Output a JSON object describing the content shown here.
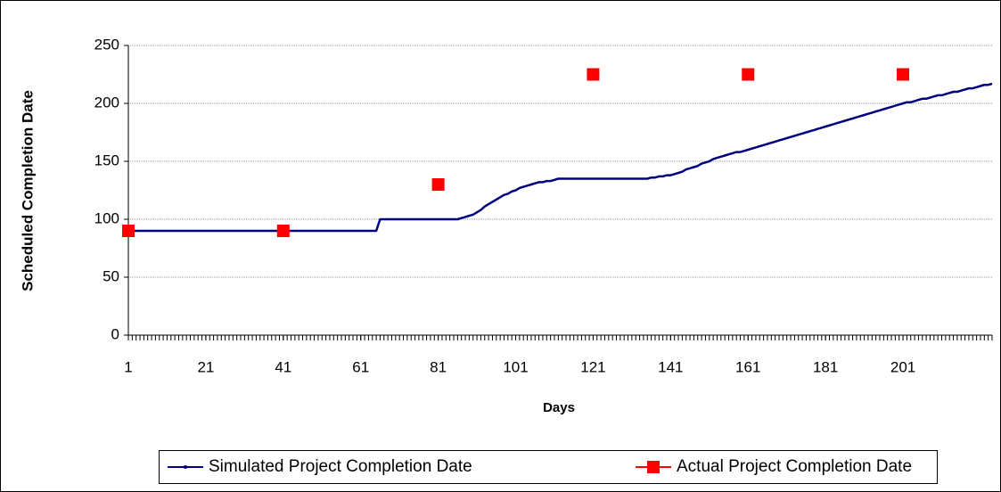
{
  "chart_data": {
    "type": "line",
    "ylabel": "Scheduled Completion Date",
    "xlabel": "Days",
    "xlim": [
      1,
      224
    ],
    "xticks": [
      1,
      21,
      41,
      61,
      81,
      101,
      121,
      141,
      161,
      181,
      201
    ],
    "ylim": [
      0,
      250
    ],
    "yticks": [
      0,
      50,
      100,
      150,
      200,
      250
    ],
    "grid": true,
    "series": [
      {
        "name": "Simulated Project Completion Date",
        "color": "#000080",
        "marker_only": false,
        "x": [
          1,
          2,
          3,
          4,
          5,
          6,
          7,
          8,
          9,
          10,
          11,
          12,
          13,
          14,
          15,
          16,
          17,
          18,
          19,
          20,
          21,
          22,
          23,
          24,
          25,
          26,
          27,
          28,
          29,
          30,
          31,
          32,
          33,
          34,
          35,
          36,
          37,
          38,
          39,
          40,
          41,
          42,
          43,
          44,
          45,
          46,
          47,
          48,
          49,
          50,
          51,
          52,
          53,
          54,
          55,
          56,
          57,
          58,
          59,
          60,
          61,
          62,
          63,
          64,
          65,
          66,
          67,
          68,
          69,
          70,
          71,
          72,
          73,
          74,
          75,
          76,
          77,
          78,
          79,
          80,
          81,
          82,
          83,
          84,
          85,
          86,
          87,
          88,
          89,
          90,
          91,
          92,
          93,
          94,
          95,
          96,
          97,
          98,
          99,
          100,
          101,
          102,
          103,
          104,
          105,
          106,
          107,
          108,
          109,
          110,
          111,
          112,
          113,
          114,
          115,
          116,
          117,
          118,
          119,
          120,
          121,
          122,
          123,
          124,
          125,
          126,
          127,
          128,
          129,
          130,
          131,
          132,
          133,
          134,
          135,
          136,
          137,
          138,
          139,
          140,
          141,
          142,
          143,
          144,
          145,
          146,
          147,
          148,
          149,
          150,
          151,
          152,
          153,
          154,
          155,
          156,
          157,
          158,
          159,
          160,
          161,
          162,
          163,
          164,
          165,
          166,
          167,
          168,
          169,
          170,
          171,
          172,
          173,
          174,
          175,
          176,
          177,
          178,
          179,
          180,
          181,
          182,
          183,
          184,
          185,
          186,
          187,
          188,
          189,
          190,
          191,
          192,
          193,
          194,
          195,
          196,
          197,
          198,
          199,
          200,
          201,
          202,
          203,
          204,
          205,
          206,
          207,
          208,
          209,
          210,
          211,
          212,
          213,
          214,
          215,
          216,
          217,
          218,
          219,
          220,
          221,
          222,
          223,
          224
        ],
        "values": [
          90,
          90,
          90,
          90,
          90,
          90,
          90,
          90,
          90,
          90,
          90,
          90,
          90,
          90,
          90,
          90,
          90,
          90,
          90,
          90,
          90,
          90,
          90,
          90,
          90,
          90,
          90,
          90,
          90,
          90,
          90,
          90,
          90,
          90,
          90,
          90,
          90,
          90,
          90,
          90,
          90,
          90,
          90,
          90,
          90,
          90,
          90,
          90,
          90,
          90,
          90,
          90,
          90,
          90,
          90,
          90,
          90,
          90,
          90,
          90,
          90,
          90,
          90,
          90,
          90,
          100,
          100,
          100,
          100,
          100,
          100,
          100,
          100,
          100,
          100,
          100,
          100,
          100,
          100,
          100,
          100,
          100,
          100,
          100,
          100,
          100,
          101,
          102,
          103,
          104,
          106,
          108,
          111,
          113,
          115,
          117,
          119,
          121,
          122,
          124,
          125,
          127,
          128,
          129,
          130,
          131,
          132,
          132,
          133,
          133,
          134,
          135,
          135,
          135,
          135,
          135,
          135,
          135,
          135,
          135,
          135,
          135,
          135,
          135,
          135,
          135,
          135,
          135,
          135,
          135,
          135,
          135,
          135,
          135,
          135,
          136,
          136,
          137,
          137,
          138,
          138,
          139,
          140,
          141,
          143,
          144,
          145,
          146,
          148,
          149,
          150,
          152,
          153,
          154,
          155,
          156,
          157,
          158,
          158,
          159,
          160,
          161,
          162,
          163,
          164,
          165,
          166,
          167,
          168,
          169,
          170,
          171,
          172,
          173,
          174,
          175,
          176,
          177,
          178,
          179,
          180,
          181,
          182,
          183,
          184,
          185,
          186,
          187,
          188,
          189,
          190,
          191,
          192,
          193,
          194,
          195,
          196,
          197,
          198,
          199,
          200,
          201,
          201,
          202,
          203,
          204,
          204,
          205,
          206,
          207,
          207,
          208,
          209,
          210,
          210,
          211,
          212,
          213,
          213,
          214,
          215,
          216,
          216,
          217
        ]
      },
      {
        "name": "Actual Project Completion Date",
        "color": "#ff0000",
        "marker_only": true,
        "x": [
          1,
          41,
          81,
          121,
          161,
          201
        ],
        "values": [
          90,
          90,
          130,
          225,
          225,
          225
        ]
      }
    ]
  }
}
